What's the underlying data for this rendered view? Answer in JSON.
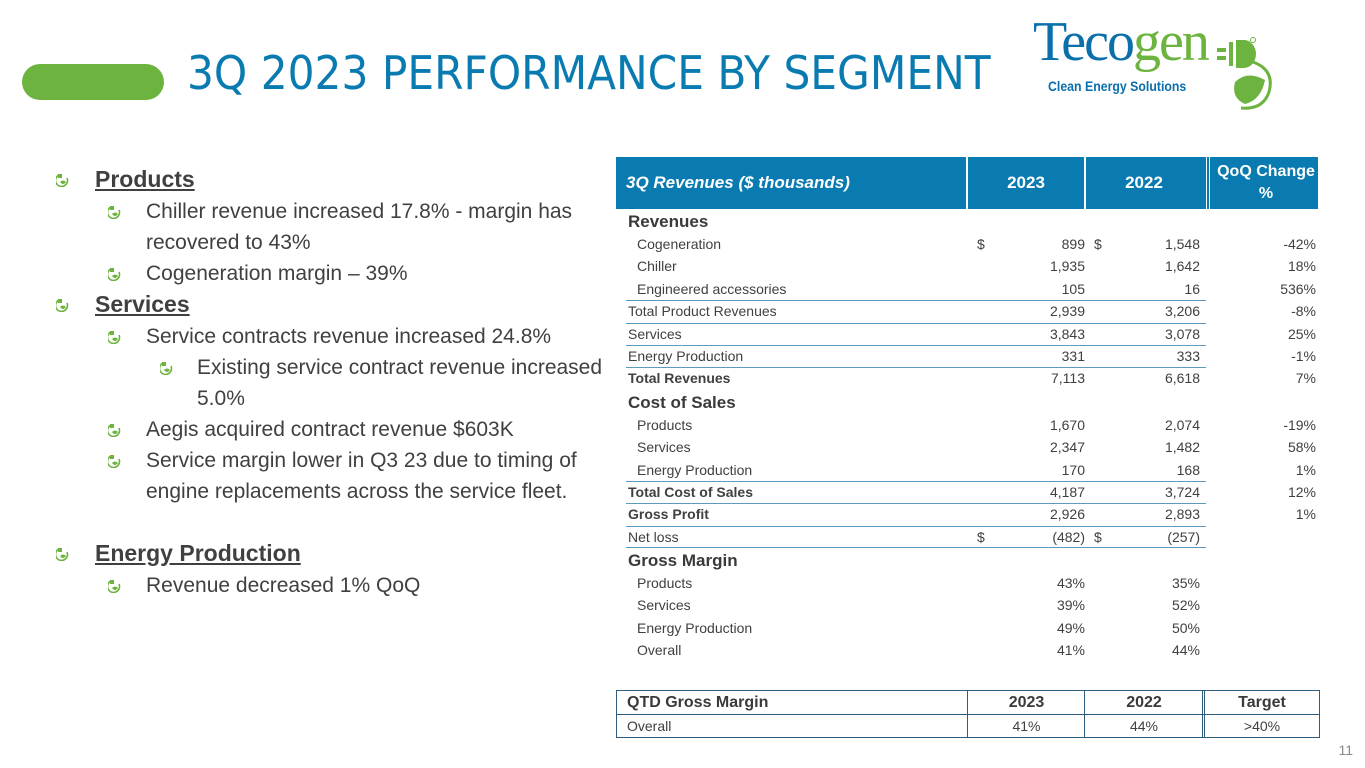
{
  "slide": {
    "title": "3Q 2023 PERFORMANCE BY SEGMENT",
    "page_number": "11",
    "colors": {
      "brand_blue": "#0a7bb0",
      "brand_green": "#6db33f",
      "text": "#404040"
    }
  },
  "logo": {
    "word_part1": "Teco",
    "word_part2": "gen",
    "tagline": "Clean Energy Solutions",
    "icon": "plug-leaf-icon"
  },
  "bullets": [
    {
      "level": 1,
      "text": "Products"
    },
    {
      "level": 2,
      "text": "Chiller revenue increased 17.8% -  margin has recovered to 43%"
    },
    {
      "level": 2,
      "text": "Cogeneration margin – 39%"
    },
    {
      "level": 1,
      "text": "Services"
    },
    {
      "level": 2,
      "text": "Service contracts revenue increased 24.8%"
    },
    {
      "level": 3,
      "text": "Existing service contract revenue increased 5.0%"
    },
    {
      "level": 2,
      "text": "Aegis acquired contract revenue $603K"
    },
    {
      "level": 2,
      "text": "Service margin lower in Q3 23 due to timing of engine replacements across the service fleet."
    },
    {
      "level": 1,
      "text": "Energy Production"
    },
    {
      "level": 2,
      "text": "Revenue decreased 1% QoQ"
    }
  ],
  "revenue_table": {
    "headers": [
      "3Q Revenues ($ thousands)",
      "2023",
      "2022",
      "QoQ Change %"
    ],
    "rows": [
      {
        "type": "section",
        "label": "Revenues"
      },
      {
        "type": "indent",
        "label": "Cogeneration",
        "d1": "$",
        "y2023": "899",
        "d2": "$",
        "y2022": "1,548",
        "change": "-42%"
      },
      {
        "type": "indent",
        "label": "Chiller",
        "y2023": "1,935",
        "y2022": "1,642",
        "change": "18%"
      },
      {
        "type": "indent",
        "label": "Engineered accessories",
        "y2023": "105",
        "y2022": "16",
        "change": "536%"
      },
      {
        "type": "total",
        "label": "Total Product Revenues",
        "y2023": "2,939",
        "y2022": "3,206",
        "change": "-8%"
      },
      {
        "type": "total",
        "label": "Services",
        "y2023": "3,843",
        "y2022": "3,078",
        "change": "25%"
      },
      {
        "type": "total",
        "label": "Energy Production",
        "y2023": "331",
        "y2022": "333",
        "change": "-1%"
      },
      {
        "type": "total-bold",
        "label": "Total Revenues",
        "y2023": "7,113",
        "y2022": "6,618",
        "change": "7%"
      },
      {
        "type": "section",
        "label": "Cost of Sales"
      },
      {
        "type": "indent",
        "label": "Products",
        "y2023": "1,670",
        "y2022": "2,074",
        "change": "-19%"
      },
      {
        "type": "indent",
        "label": "Services",
        "y2023": "2,347",
        "y2022": "1,482",
        "change": "58%"
      },
      {
        "type": "indent",
        "label": "Energy Production",
        "y2023": "170",
        "y2022": "168",
        "change": "1%"
      },
      {
        "type": "total-bold",
        "label": "Total Cost of Sales",
        "y2023": "4,187",
        "y2022": "3,724",
        "change": "12%"
      },
      {
        "type": "total-bold",
        "label": "Gross Profit",
        "y2023": "2,926",
        "y2022": "2,893",
        "change": "1%"
      },
      {
        "type": "total",
        "label": "Net loss",
        "d1": "$",
        "y2023": "(482)",
        "d2": "$",
        "y2022": "(257)",
        "change": ""
      },
      {
        "type": "section",
        "label": "Gross Margin"
      },
      {
        "type": "indent",
        "label": "Products",
        "y2023": "43%",
        "y2022": "35%",
        "change": ""
      },
      {
        "type": "indent",
        "label": "Services",
        "y2023": "39%",
        "y2022": "52%",
        "change": ""
      },
      {
        "type": "indent",
        "label": "Energy Production",
        "y2023": "49%",
        "y2022": "50%",
        "change": ""
      },
      {
        "type": "indent",
        "label": "Overall",
        "y2023": "41%",
        "y2022": "44%",
        "change": ""
      }
    ]
  },
  "qtd_table": {
    "headers": [
      "QTD Gross Margin",
      "2023",
      "2022",
      "Target"
    ],
    "row": [
      "Overall",
      "41%",
      "44%",
      ">40%"
    ]
  }
}
